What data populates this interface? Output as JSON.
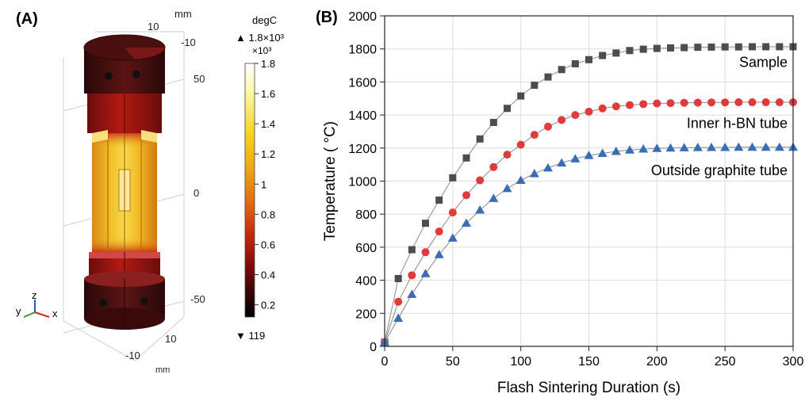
{
  "panel_a": {
    "label": "(A)",
    "colorbar": {
      "unit": "degC",
      "max_marker": "▲ 1.8×10³",
      "multiplier": "×10³",
      "ticks": [
        "1.8",
        "1.6",
        "1.4",
        "1.2",
        "1",
        "0.8",
        "0.6",
        "0.4",
        "0.2"
      ],
      "min_marker": "▼ 119",
      "colors": [
        "#ffffff",
        "#fff6a0",
        "#f5d31e",
        "#eba517",
        "#e06a12",
        "#c4260f",
        "#7e0b0b",
        "#3a0606",
        "#000000"
      ]
    },
    "axes": {
      "mm_top": "mm",
      "mm_bottom": "mm",
      "top_ticks": [
        "10",
        "-10"
      ],
      "z_ticks": [
        "50",
        "0",
        "-50"
      ],
      "bottom_ticks": [
        "10",
        "-10"
      ],
      "triad": {
        "z": "z",
        "y": "y",
        "x": "x"
      }
    }
  },
  "panel_b": {
    "label": "(B)"
  },
  "chart_data": {
    "type": "line",
    "xlabel": "Flash Sintering Duration (s)",
    "ylabel": "Temperature ( °C)",
    "xlim": [
      0,
      300
    ],
    "ylim": [
      0,
      2000
    ],
    "xticks": [
      0,
      50,
      100,
      150,
      200,
      250,
      300
    ],
    "yticks": [
      0,
      200,
      400,
      600,
      800,
      1000,
      1200,
      1400,
      1600,
      1800,
      2000
    ],
    "grid": true,
    "x": [
      0,
      10,
      20,
      30,
      40,
      50,
      60,
      70,
      80,
      90,
      100,
      110,
      120,
      130,
      140,
      150,
      160,
      170,
      180,
      190,
      200,
      210,
      220,
      230,
      240,
      250,
      260,
      270,
      280,
      290,
      300
    ],
    "series": [
      {
        "name": "Sample",
        "marker": "square",
        "color": "#4d4d4d",
        "values": [
          25,
          410,
          585,
          745,
          885,
          1020,
          1140,
          1255,
          1355,
          1440,
          1515,
          1580,
          1630,
          1675,
          1710,
          1735,
          1760,
          1775,
          1790,
          1798,
          1803,
          1806,
          1808,
          1810,
          1811,
          1812,
          1812,
          1813,
          1813,
          1813,
          1813
        ]
      },
      {
        "name": "Inner h-BN tube",
        "marker": "circle",
        "color": "#e03a3a",
        "values": [
          25,
          270,
          430,
          570,
          695,
          810,
          915,
          1005,
          1085,
          1160,
          1220,
          1280,
          1330,
          1370,
          1400,
          1420,
          1440,
          1452,
          1460,
          1466,
          1470,
          1472,
          1474,
          1475,
          1476,
          1476,
          1477,
          1477,
          1477,
          1477,
          1477
        ]
      },
      {
        "name": "Outside graphite tube",
        "marker": "triangle",
        "color": "#3a6db5",
        "values": [
          25,
          170,
          315,
          440,
          555,
          655,
          745,
          825,
          895,
          955,
          1005,
          1045,
          1080,
          1110,
          1135,
          1155,
          1168,
          1180,
          1188,
          1194,
          1198,
          1200,
          1202,
          1203,
          1204,
          1204,
          1205,
          1205,
          1205,
          1205,
          1205
        ]
      }
    ]
  }
}
